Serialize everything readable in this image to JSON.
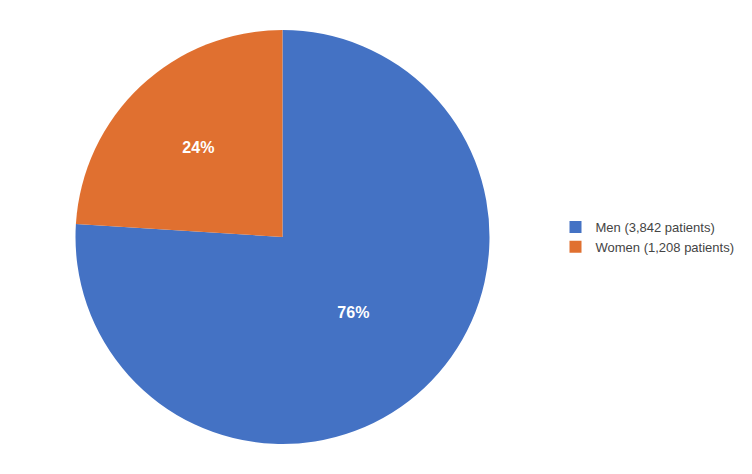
{
  "chart_data": {
    "type": "pie",
    "categories": [
      "Men (3,842 patients)",
      "Women (1,208 patients)"
    ],
    "values": [
      76,
      24
    ],
    "value_labels": [
      "76%",
      "24%"
    ],
    "data_labels": true,
    "colors": [
      "#4472C4",
      "#E07030"
    ],
    "legend": "right"
  }
}
